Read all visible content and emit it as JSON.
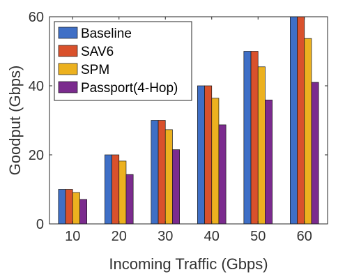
{
  "chart_data": {
    "type": "bar",
    "categories": [
      "10",
      "20",
      "30",
      "40",
      "50",
      "60"
    ],
    "series": [
      {
        "name": "Baseline",
        "color": "#3f6fc6",
        "values": [
          10,
          20,
          30,
          40,
          50,
          60
        ]
      },
      {
        "name": "SAV6",
        "color": "#d9512c",
        "values": [
          10,
          20,
          30,
          40,
          50,
          60
        ]
      },
      {
        "name": "SPM",
        "color": "#ecb11f",
        "values": [
          9.1,
          18.2,
          27.3,
          36.4,
          45.5,
          53.7
        ]
      },
      {
        "name": "Passport(4-Hop)",
        "color": "#7b2b8e",
        "values": [
          7.1,
          14.3,
          21.5,
          28.7,
          35.9,
          41.0
        ]
      }
    ],
    "xlabel": "Incoming Traffic (Gbps)",
    "ylabel": "Goodput (Gbps)",
    "ylim": [
      0,
      60
    ],
    "yticks": [
      "0",
      "20",
      "40",
      "60"
    ],
    "legend_position": "top-left",
    "grid": false
  }
}
